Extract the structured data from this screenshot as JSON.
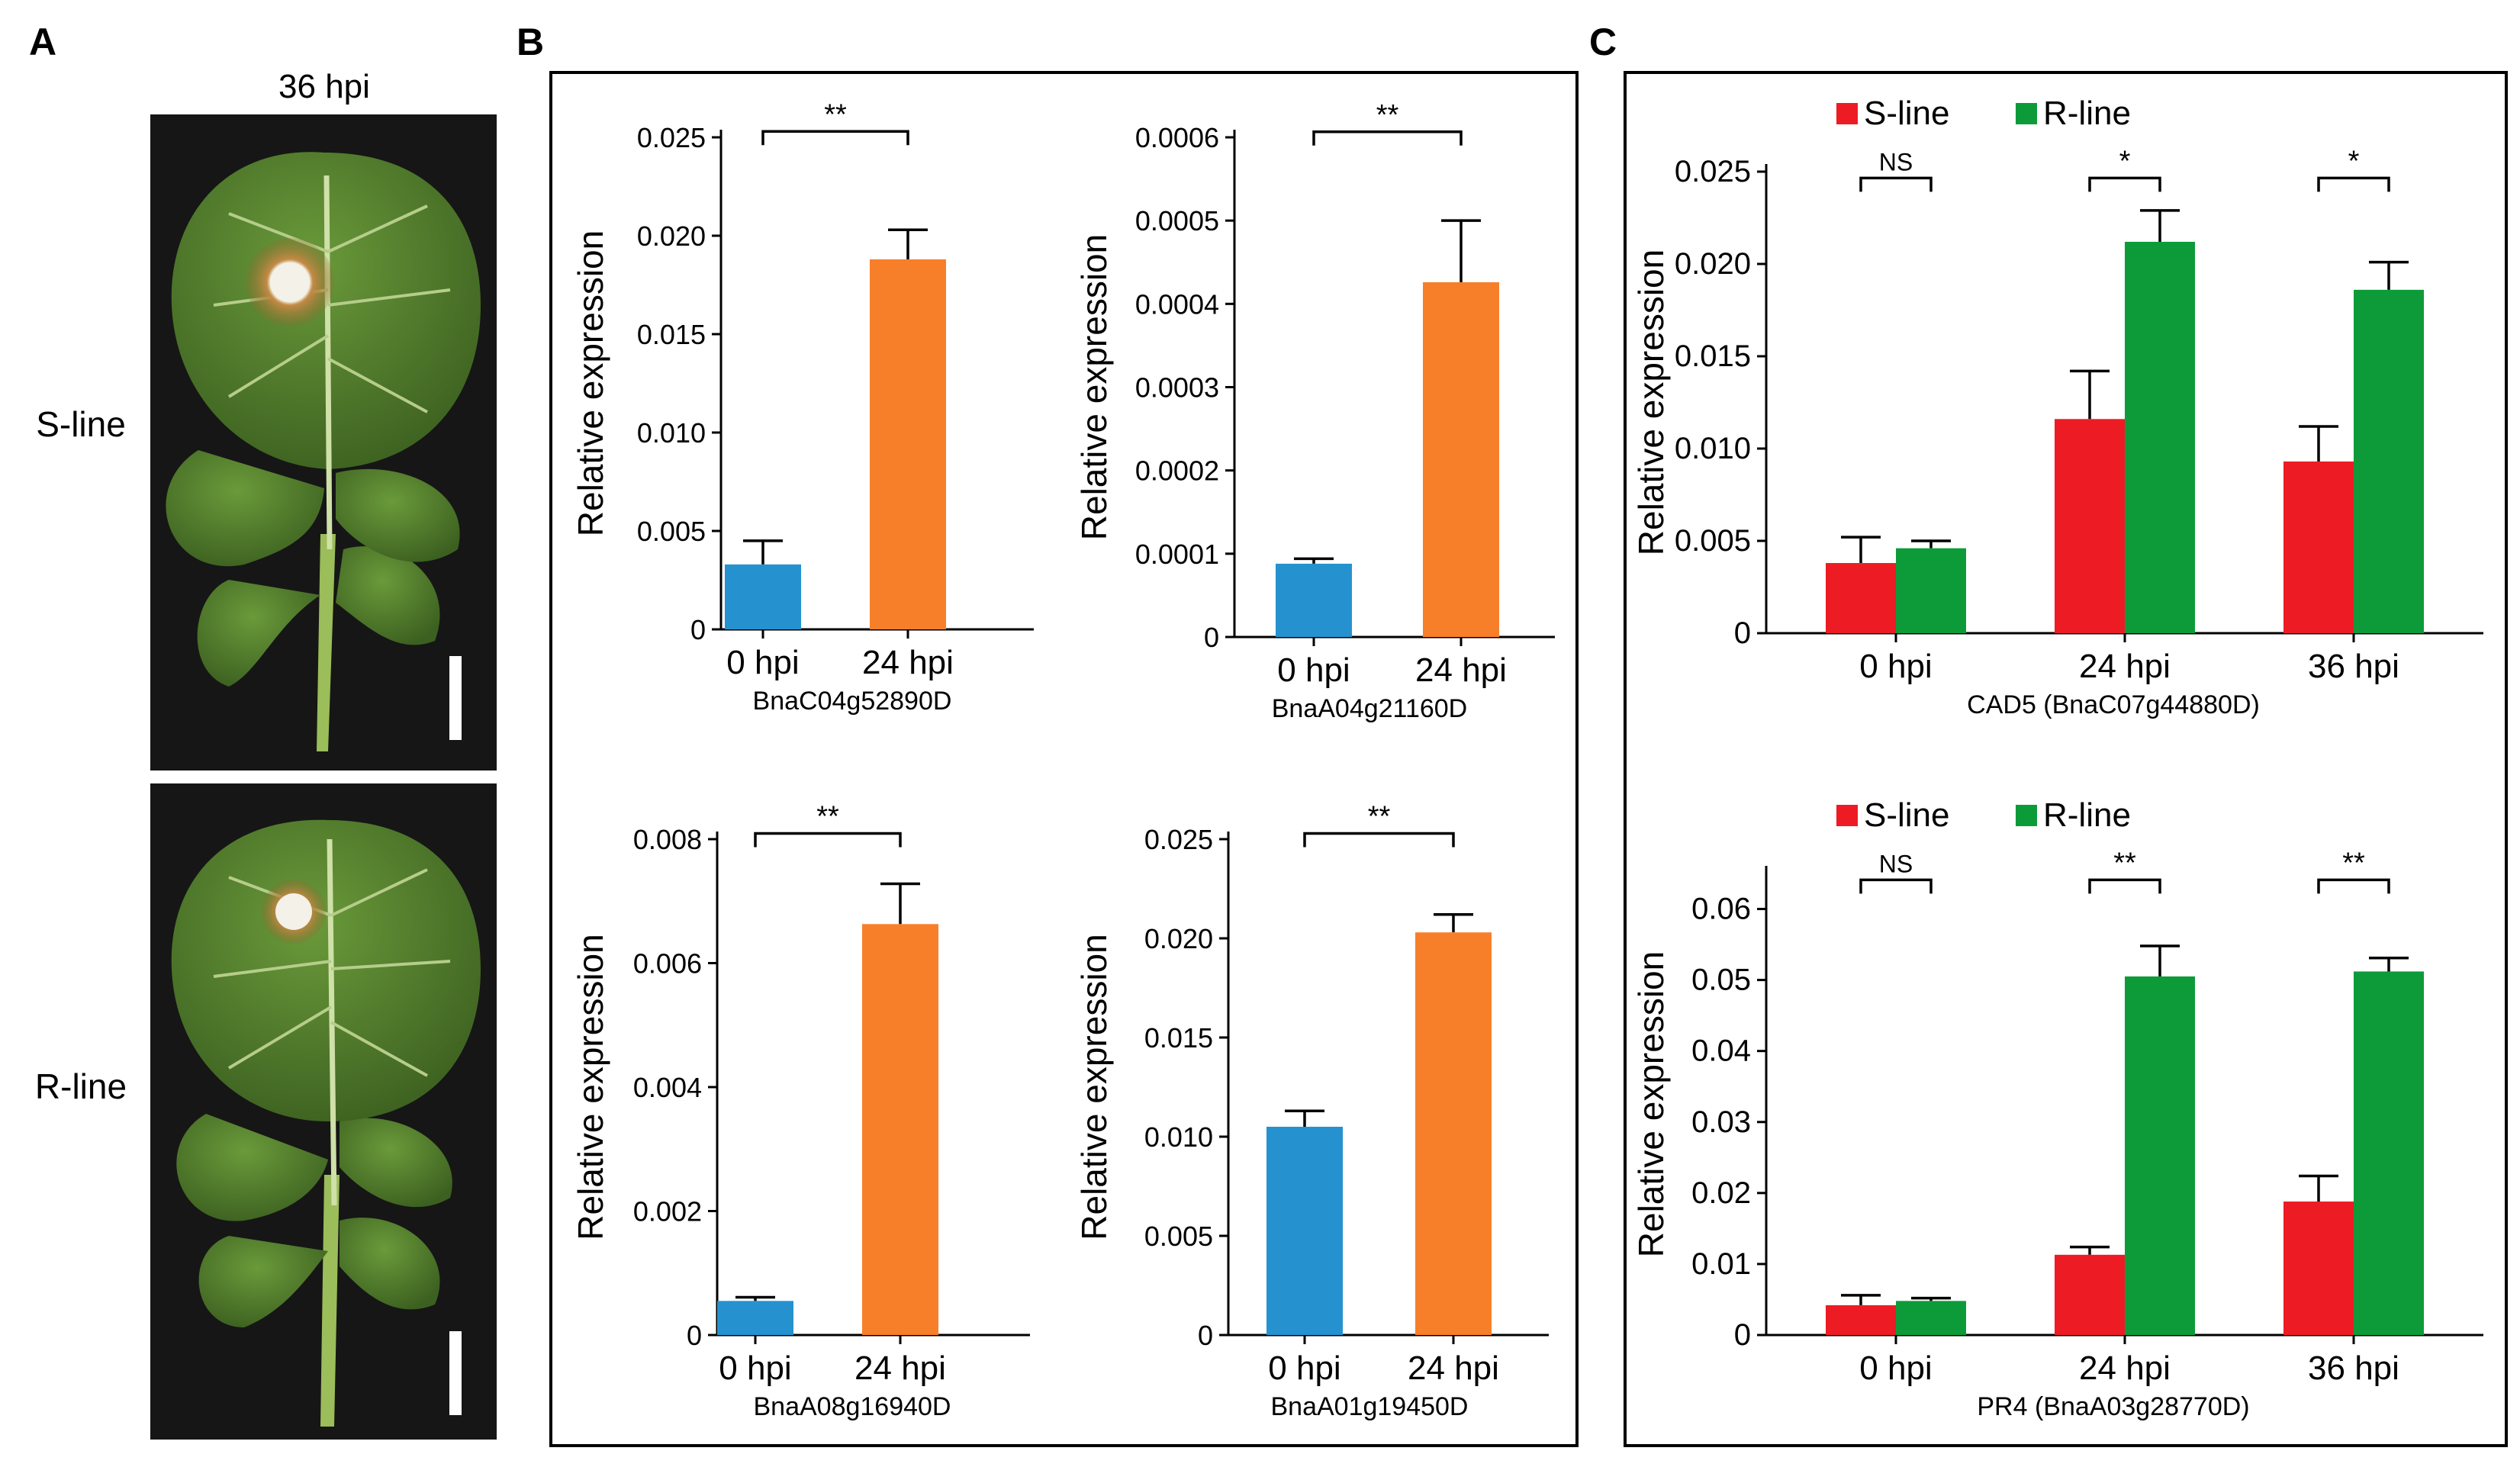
{
  "panels": {
    "A": {
      "label": "A",
      "time_label": "36 hpi",
      "row_labels": [
        "S-line",
        "R-line"
      ],
      "colors": {
        "leaf": "#4f7a2a",
        "leaf_dark": "#3d6222",
        "vein": "#cfe0a8",
        "lesion": "#b06a2e",
        "spot": "#f0eee4",
        "photo_bg": "#141414",
        "scale_bar": "#ffffff"
      }
    },
    "B": {
      "label": "B"
    },
    "C": {
      "label": "C"
    }
  },
  "chart_data": [
    {
      "id": "b1",
      "panel": "B",
      "type": "bar",
      "categories": [
        "0 hpi",
        "24 hpi"
      ],
      "values": [
        0.0033,
        0.0188
      ],
      "errors": [
        0.0012,
        0.0015
      ],
      "colors": [
        "#2592cf",
        "#f77f2a"
      ],
      "ylim": [
        0,
        0.025
      ],
      "yticks": [
        "0",
        "0.005",
        "0.010",
        "0.015",
        "0.020",
        "0.025"
      ],
      "ylabel": "Relative expression",
      "xlabel": "BnaC04g52890D",
      "significance": "**"
    },
    {
      "id": "b2",
      "panel": "B",
      "type": "bar",
      "categories": [
        "0 hpi",
        "24 hpi"
      ],
      "values": [
        8.8e-05,
        0.000426
      ],
      "errors": [
        6e-06,
        7.4e-05
      ],
      "colors": [
        "#2592cf",
        "#f77f2a"
      ],
      "ylim": [
        0,
        0.0006
      ],
      "yticks": [
        "0",
        "0.0001",
        "0.0002",
        "0.0003",
        "0.0004",
        "0.0005",
        "0.0006"
      ],
      "ylabel": "Relative expression",
      "xlabel": "BnaA04g21160D",
      "significance": "**"
    },
    {
      "id": "b3",
      "panel": "B",
      "type": "bar",
      "categories": [
        "0 hpi",
        "24 hpi"
      ],
      "values": [
        0.00055,
        0.00663
      ],
      "errors": [
        6e-05,
        0.00065
      ],
      "colors": [
        "#2592cf",
        "#f77f2a"
      ],
      "ylim": [
        0,
        0.008
      ],
      "yticks": [
        "0",
        "0.002",
        "0.004",
        "0.006",
        "0.008"
      ],
      "ylabel": "Relative expression",
      "xlabel": "BnaA08g16940D",
      "significance": "**"
    },
    {
      "id": "b4",
      "panel": "B",
      "type": "bar",
      "categories": [
        "0 hpi",
        "24 hpi"
      ],
      "values": [
        0.0105,
        0.0203
      ],
      "errors": [
        0.0008,
        0.0009
      ],
      "colors": [
        "#2592cf",
        "#f77f2a"
      ],
      "ylim": [
        0,
        0.025
      ],
      "yticks": [
        "0",
        "0.005",
        "0.010",
        "0.015",
        "0.020",
        "0.025"
      ],
      "ylabel": "Relative expression",
      "xlabel": "BnaA01g19450D",
      "significance": "**"
    },
    {
      "id": "c1",
      "panel": "C",
      "type": "bar",
      "categories": [
        "0 hpi",
        "24 hpi",
        "36 hpi"
      ],
      "series": [
        {
          "name": "S-line",
          "color": "#ed1c24",
          "values": [
            0.0038,
            0.0116,
            0.0093
          ],
          "errors": [
            0.0014,
            0.0026,
            0.0019
          ]
        },
        {
          "name": "R-line",
          "color": "#0d9b3a",
          "values": [
            0.0046,
            0.0212,
            0.0186
          ],
          "errors": [
            0.0004,
            0.0017,
            0.0015
          ]
        }
      ],
      "ylim": [
        0,
        0.025
      ],
      "yticks": [
        "0",
        "0.005",
        "0.010",
        "0.015",
        "0.020",
        "0.025"
      ],
      "ylabel": "Relative expression",
      "xlabel": "CAD5 (BnaC07g44880D)",
      "significance": [
        "NS",
        "*",
        "*"
      ],
      "legend": "top-left"
    },
    {
      "id": "c2",
      "panel": "C",
      "type": "bar",
      "categories": [
        "0 hpi",
        "24 hpi",
        "36 hpi"
      ],
      "series": [
        {
          "name": "S-line",
          "color": "#ed1c24",
          "values": [
            0.0042,
            0.0113,
            0.0188
          ],
          "errors": [
            0.0014,
            0.0011,
            0.0036
          ]
        },
        {
          "name": "R-line",
          "color": "#0d9b3a",
          "values": [
            0.0048,
            0.0505,
            0.0512
          ],
          "errors": [
            0.0004,
            0.0043,
            0.0019
          ]
        }
      ],
      "ylim": [
        0,
        0.065
      ],
      "yticks": [
        "0",
        "0.01",
        "0.02",
        "0.03",
        "0.04",
        "0.05",
        "0.06"
      ],
      "ylabel": "Relative expression",
      "xlabel": "PR4 (BnaA03g28770D)",
      "significance": [
        "NS",
        "**",
        "**"
      ],
      "legend": "top-left"
    }
  ]
}
